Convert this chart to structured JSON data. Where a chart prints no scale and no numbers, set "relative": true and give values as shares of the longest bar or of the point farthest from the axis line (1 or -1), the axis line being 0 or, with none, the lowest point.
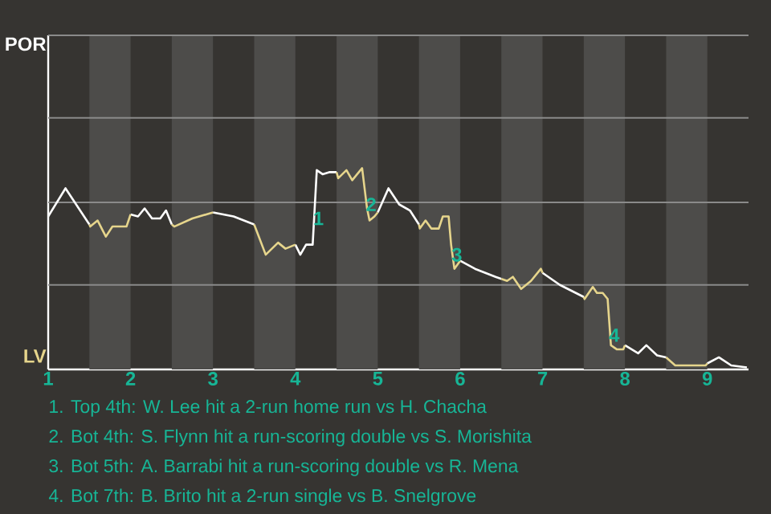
{
  "chart_data": {
    "type": "line",
    "relative": true,
    "xlim": [
      1,
      9.5
    ],
    "xticks": [
      1,
      2,
      3,
      4,
      5,
      6,
      7,
      8,
      9
    ],
    "marker": "none",
    "line_style": "solid",
    "ref_lines": [
      {
        "axis": "y",
        "value": 0.42,
        "color": "#8a8a8a"
      },
      {
        "axis": "y",
        "value": 0.83,
        "color": "#8a8a8a"
      },
      {
        "axis": "y",
        "value": 1.25,
        "color": "#8a8a8a"
      },
      {
        "axis": "y",
        "value": 1.66,
        "color": "#8a8a8a"
      }
    ],
    "bands": [
      {
        "axis": "x",
        "from": 1.5,
        "to": 2,
        "color": "#4d4c4a"
      },
      {
        "axis": "x",
        "from": 2.5,
        "to": 3,
        "color": "#4d4c4a"
      },
      {
        "axis": "x",
        "from": 3.5,
        "to": 4,
        "color": "#4d4c4a"
      },
      {
        "axis": "x",
        "from": 4.5,
        "to": 5,
        "color": "#4d4c4a"
      },
      {
        "axis": "x",
        "from": 5.5,
        "to": 6,
        "color": "#4d4c4a"
      },
      {
        "axis": "x",
        "from": 6.5,
        "to": 7,
        "color": "#4d4c4a"
      },
      {
        "axis": "x",
        "from": 7.5,
        "to": 8,
        "color": "#4d4c4a"
      },
      {
        "axis": "x",
        "from": 8.5,
        "to": 9,
        "color": "#4d4c4a"
      }
    ],
    "series": [
      {
        "color": "#ffffff",
        "x": [
          1,
          1.21,
          1.5,
          null,
          2,
          2.09,
          2.17,
          2.26,
          2.36,
          2.43,
          2.5,
          null,
          3,
          3.25,
          3.5,
          null,
          4,
          4.06,
          4.13,
          4.21,
          4.26,
          4.33,
          4.41,
          4.5,
          null,
          5,
          5.13,
          5.26,
          5.39,
          5.5,
          null,
          6,
          6.18,
          6.43,
          6.5,
          null,
          7,
          7.21,
          7.5,
          null,
          8,
          8.16,
          8.26,
          8.39,
          8.5,
          null,
          9,
          9.14,
          9.29,
          9.48
        ],
        "values": [
          0.76,
          0.9,
          0.72,
          null,
          0.77,
          0.76,
          0.8,
          0.75,
          0.75,
          0.79,
          0.72,
          null,
          0.78,
          0.76,
          0.72,
          null,
          0.62,
          0.57,
          0.62,
          0.62,
          0.99,
          0.97,
          0.98,
          0.98,
          null,
          0.78,
          0.9,
          0.82,
          0.79,
          0.72,
          null,
          0.54,
          0.5,
          0.46,
          0.45,
          null,
          0.48,
          0.42,
          0.36,
          null,
          0.12,
          0.08,
          0.12,
          0.07,
          0.06,
          null,
          0.03,
          0.06,
          0.02,
          0.01
        ]
      },
      {
        "color": "#e6d58c",
        "x": [
          1.5,
          1.51,
          1.6,
          1.7,
          1.78,
          1.95,
          2,
          null,
          2.5,
          2.53,
          2.75,
          3,
          null,
          3.5,
          3.64,
          3.79,
          3.88,
          4,
          null,
          4.5,
          4.52,
          4.62,
          4.69,
          4.81,
          4.87,
          4.9,
          4.96,
          5,
          null,
          5.5,
          5.51,
          5.58,
          5.65,
          5.74,
          5.79,
          5.86,
          5.89,
          5.93,
          6,
          null,
          6.5,
          6.57,
          6.64,
          6.74,
          6.86,
          6.98,
          7,
          null,
          7.5,
          7.51,
          7.61,
          7.66,
          7.73,
          7.79,
          7.83,
          7.9,
          7.98,
          8,
          null,
          8.5,
          8.61,
          8.98,
          9
        ],
        "values": [
          0.72,
          0.71,
          0.74,
          0.66,
          0.71,
          0.71,
          0.77,
          null,
          0.72,
          0.71,
          0.75,
          0.78,
          null,
          0.72,
          0.57,
          0.63,
          0.6,
          0.62,
          null,
          0.98,
          0.95,
          0.99,
          0.94,
          1,
          0.8,
          0.74,
          0.76,
          0.78,
          null,
          0.72,
          0.7,
          0.74,
          0.7,
          0.7,
          0.76,
          0.76,
          0.62,
          0.5,
          0.54,
          null,
          0.45,
          0.44,
          0.46,
          0.4,
          0.44,
          0.5,
          0.48,
          null,
          0.36,
          0.35,
          0.41,
          0.38,
          0.38,
          0.35,
          0.12,
          0.1,
          0.1,
          0.12,
          null,
          0.06,
          0.02,
          0.02,
          0.03
        ]
      }
    ],
    "annotations": [
      "POR",
      "LV",
      {
        "text": "1",
        "x": 4.28,
        "y": 0.75
      },
      {
        "text": "2",
        "x": 4.92,
        "y": 0.82
      },
      {
        "text": "3",
        "x": 5.96,
        "y": 0.57
      },
      {
        "text": "4",
        "x": 7.87,
        "y": 0.17
      },
      "1. Top 4th: W. Lee hit a 2-run home run vs H. Chacha",
      "2. Bot 4th: S. Flynn hit a run-scoring double vs S. Morishita",
      "3. Bot 5th: A. Barrabi hit a run-scoring double vs R. Mena",
      "4. Bot 7th: B. Brito hit a 2-run single vs B. Snelgrove"
    ]
  }
}
